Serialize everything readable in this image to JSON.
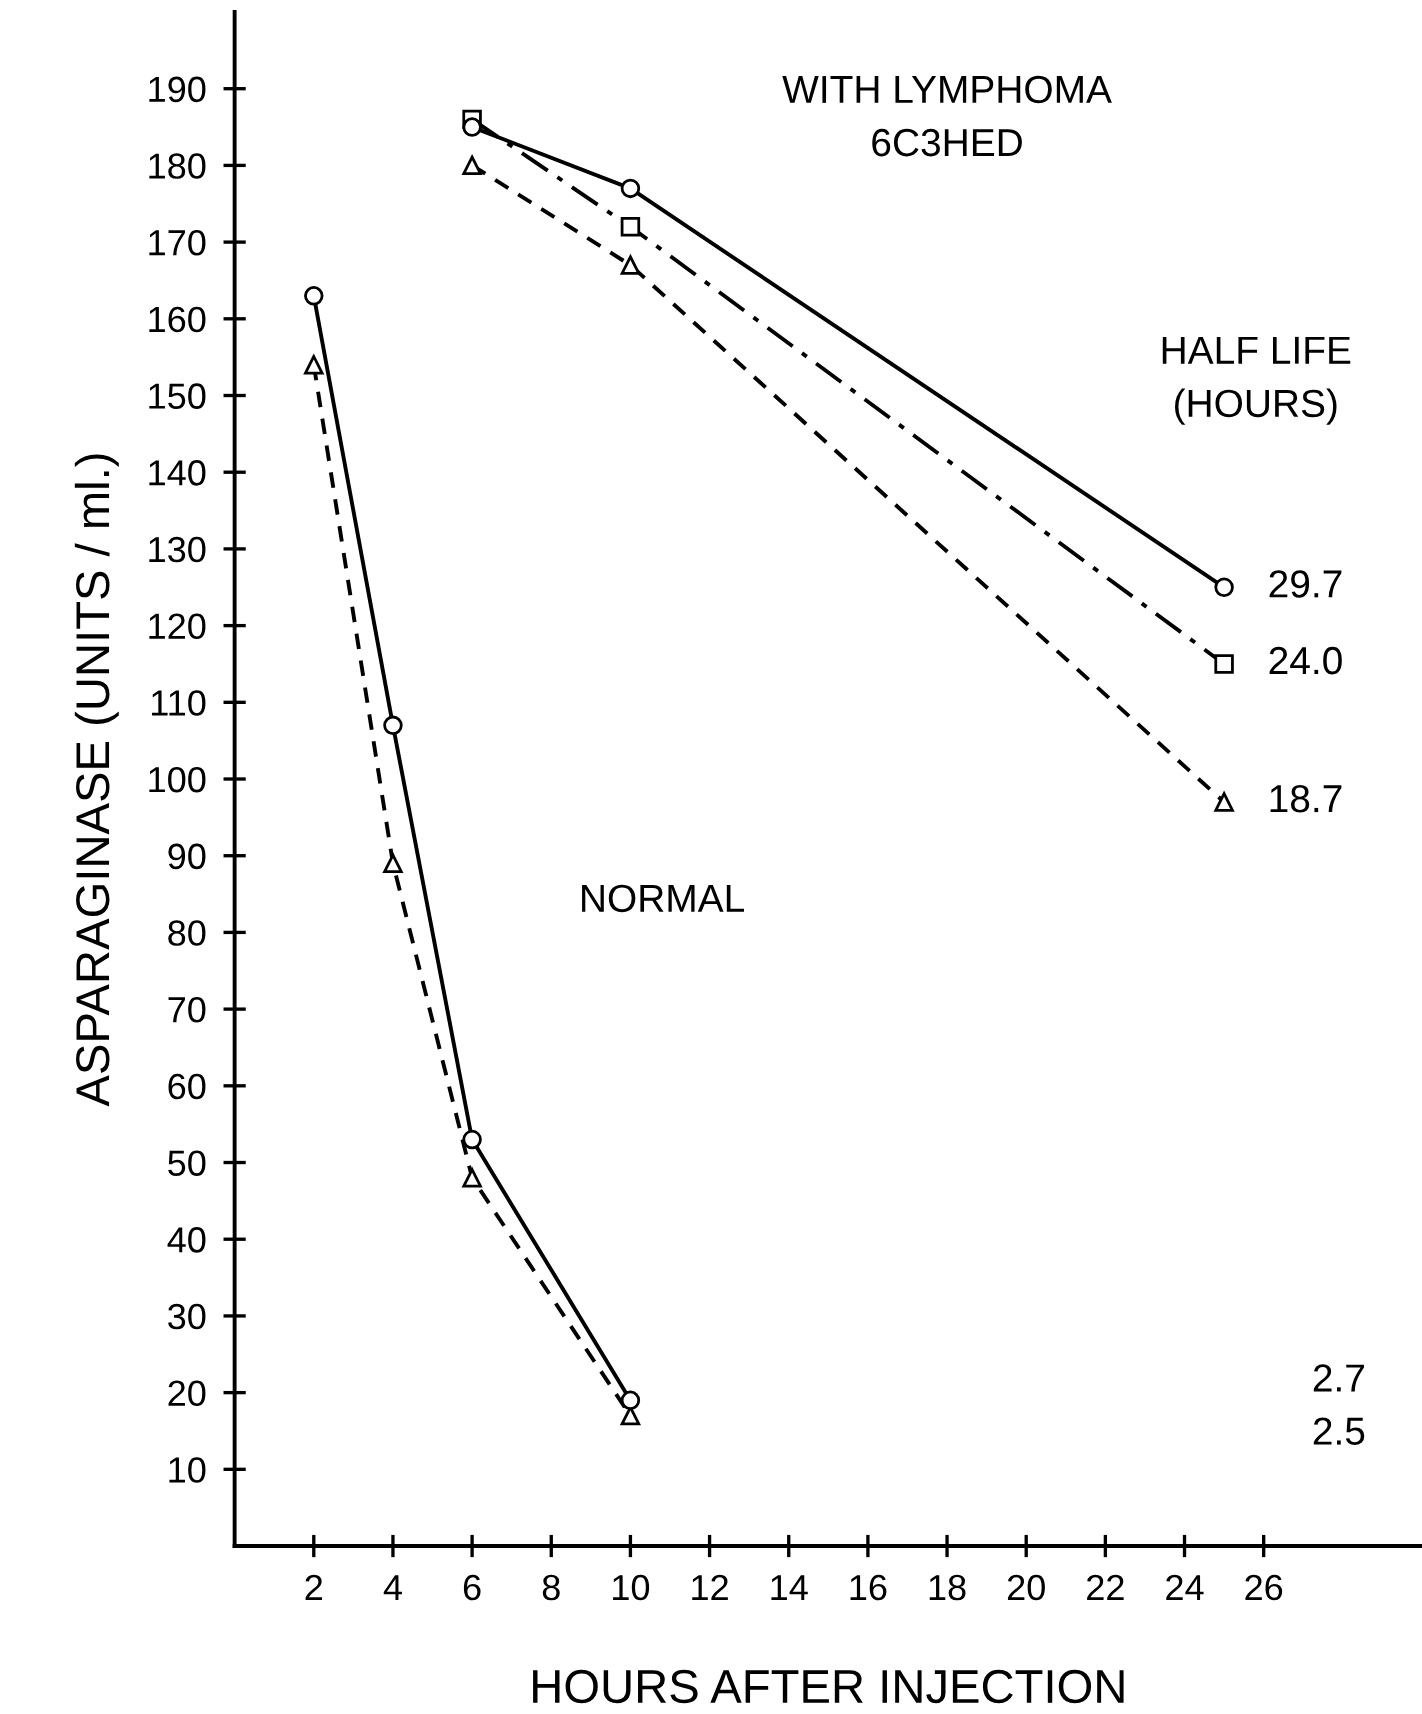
{
  "chart_data": {
    "type": "line",
    "xlabel": "HOURS AFTER INJECTION",
    "ylabel": "ASPARAGINASE (UNITS / ml.)",
    "xlim": [
      0,
      30
    ],
    "xticks": [
      2,
      4,
      6,
      8,
      10,
      12,
      14,
      16,
      18,
      20,
      22,
      24,
      26
    ],
    "ylim": [
      0,
      200
    ],
    "yticks": [
      10,
      20,
      30,
      40,
      50,
      60,
      70,
      80,
      90,
      100,
      110,
      120,
      130,
      140,
      150,
      160,
      170,
      180,
      190
    ],
    "grid": false,
    "legend": false,
    "series": [
      {
        "color": "#000000",
        "marker": "circle",
        "line_style": "solid",
        "x": [
          2,
          4,
          6,
          10
        ],
        "values": [
          163,
          107,
          53,
          19
        ]
      },
      {
        "color": "#000000",
        "marker": "triangle",
        "line_style": "dashed",
        "x": [
          2,
          4,
          6,
          10
        ],
        "values": [
          154,
          89,
          48,
          17
        ]
      },
      {
        "color": "#000000",
        "marker": "circle",
        "line_style": "solid",
        "x": [
          6,
          10,
          25
        ],
        "values": [
          185,
          177,
          125
        ]
      },
      {
        "color": "#000000",
        "marker": "square",
        "line_style": "dashdot",
        "x": [
          6,
          10,
          25
        ],
        "values": [
          186,
          172,
          115
        ]
      },
      {
        "color": "#000000",
        "marker": "triangle",
        "line_style": "dashed",
        "x": [
          6,
          10,
          25
        ],
        "values": [
          180,
          167,
          97
        ]
      }
    ],
    "annotations": [
      "WITH LYMPHOMA\n6C3HED",
      "NORMAL",
      "HALF LIFE\n(HOURS)",
      "29.7",
      "24.0",
      "18.7",
      "2.7\n2.5"
    ]
  }
}
